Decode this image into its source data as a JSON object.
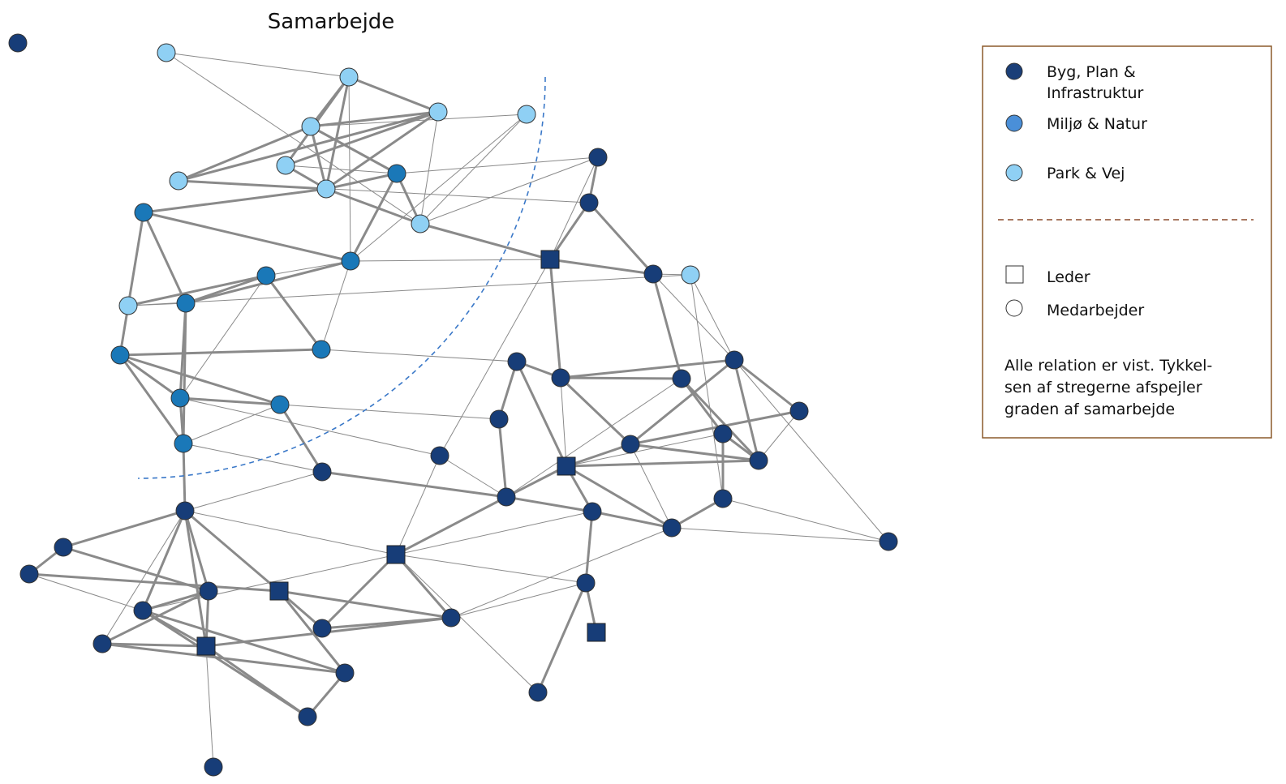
{
  "title": "Samarbejde",
  "legend": {
    "groups": [
      {
        "lines": [
          "Byg, Plan &",
          "Infrastruktur"
        ],
        "color": "#1b3f78"
      },
      {
        "lines": [
          "Miljø & Natur"
        ],
        "color": "#4a8fd8"
      },
      {
        "lines": [
          "Park & Vej"
        ],
        "color": "#8fd0f4"
      }
    ],
    "shapes": [
      {
        "label": "Leder",
        "shape": "square"
      },
      {
        "label": "Medarbejder",
        "shape": "circle"
      }
    ],
    "note": [
      "Alle relation er vist. Tykkel-",
      "sen af stregerne afspejler",
      "graden af samarbejde"
    ]
  }
}
